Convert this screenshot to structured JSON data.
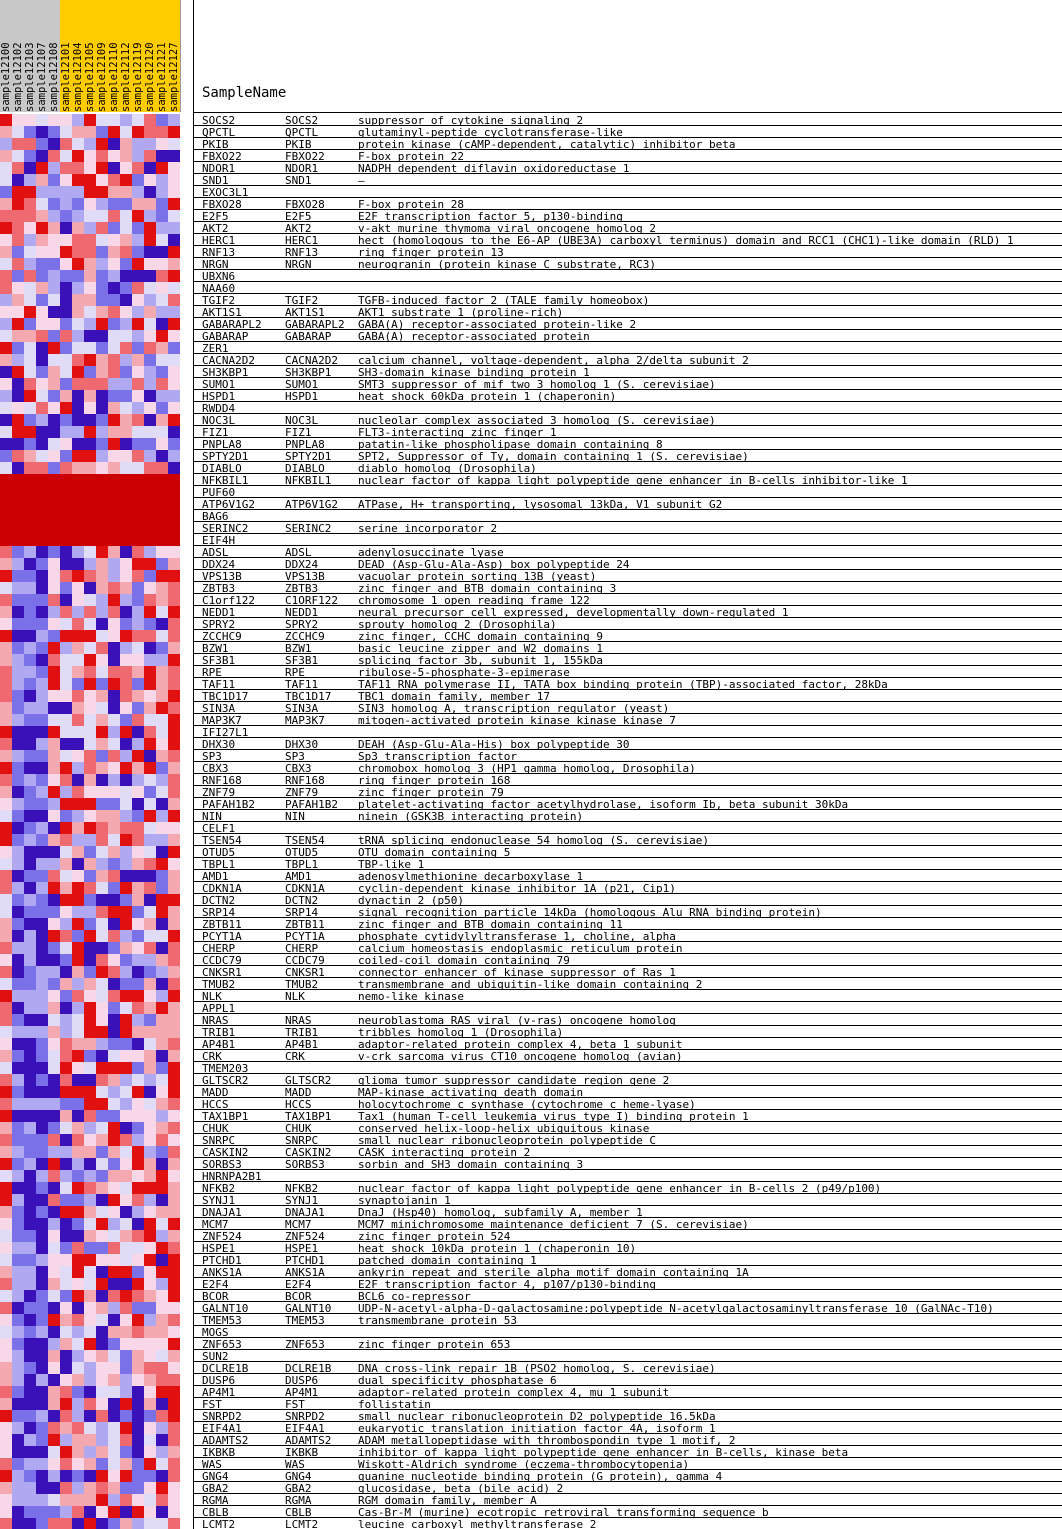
{
  "header": {
    "samplename_label": "SampleName"
  },
  "chart_data": {
    "type": "heatmap",
    "title": "",
    "xlabel": "",
    "ylabel": "",
    "column_header_colors": {
      "group_a": "#c8c8c8",
      "group_b": "#ffcc00"
    },
    "color_scale": [
      "#3a10b8",
      "#7a70e8",
      "#b0a8f0",
      "#e0dcf8",
      "#f8d8e8",
      "#f4a8b0",
      "#ee6a70",
      "#e01010"
    ],
    "samples": [
      {
        "name": "sample12100",
        "group": "group_a"
      },
      {
        "name": "sample12102",
        "group": "group_a"
      },
      {
        "name": "sample12103",
        "group": "group_a"
      },
      {
        "name": "sample12107",
        "group": "group_a"
      },
      {
        "name": "sample12108",
        "group": "group_a"
      },
      {
        "name": "sample12101",
        "group": "group_b"
      },
      {
        "name": "sample12104",
        "group": "group_b"
      },
      {
        "name": "sample12105",
        "group": "group_b"
      },
      {
        "name": "sample12109",
        "group": "group_b"
      },
      {
        "name": "sample12110",
        "group": "group_b"
      },
      {
        "name": "sample12112",
        "group": "group_b"
      },
      {
        "name": "sample12119",
        "group": "group_b"
      },
      {
        "name": "sample12120",
        "group": "group_b"
      },
      {
        "name": "sample12121",
        "group": "group_b"
      },
      {
        "name": "sample12127",
        "group": "group_b"
      }
    ],
    "rows": [
      [
        "SOCS2",
        "SOCS2",
        "suppressor of cytokine signaling 2"
      ],
      [
        "QPCTL",
        "QPCTL",
        "glutaminyl-peptide cyclotransferase-like"
      ],
      [
        "PKIB",
        "PKIB",
        "protein kinase (cAMP-dependent, catalytic) inhibitor beta"
      ],
      [
        "FBXO22",
        "FBXO22",
        "F-box protein 22"
      ],
      [
        "NDOR1",
        "NDOR1",
        "NADPH dependent diflavin oxidoreductase 1"
      ],
      [
        "SND1",
        "SND1",
        "–"
      ],
      [
        "EXOC3L1",
        "",
        ""
      ],
      [
        "FBXO28",
        "FBXO28",
        "F-box protein 28"
      ],
      [
        "E2F5",
        "E2F5",
        "E2F transcription factor 5, p130-binding"
      ],
      [
        "AKT2",
        "AKT2",
        "v-akt murine thymoma viral oncogene homolog 2"
      ],
      [
        "HERC1",
        "HERC1",
        "hect (homologous to the E6-AP (UBE3A) carboxyl terminus) domain and RCC1 (CHC1)-like domain (RLD) 1"
      ],
      [
        "RNF13",
        "RNF13",
        "ring finger protein 13"
      ],
      [
        "NRGN",
        "NRGN",
        "neurogranin (protein kinase C substrate, RC3)"
      ],
      [
        "UBXN6",
        "",
        ""
      ],
      [
        "NAA60",
        "",
        ""
      ],
      [
        "TGIF2",
        "TGIF2",
        "TGFB-induced factor 2 (TALE family homeobox)"
      ],
      [
        "AKT1S1",
        "AKT1S1",
        "AKT1 substrate 1 (proline-rich)"
      ],
      [
        "GABARAPL2",
        "GABARAPL2",
        "GABA(A) receptor-associated protein-like 2"
      ],
      [
        "GABARAP",
        "GABARAP",
        "GABA(A) receptor-associated protein"
      ],
      [
        "ZER1",
        "",
        ""
      ],
      [
        "CACNA2D2",
        "CACNA2D2",
        "calcium channel, voltage-dependent, alpha 2/delta subunit 2"
      ],
      [
        "SH3KBP1",
        "SH3KBP1",
        "SH3-domain kinase binding protein 1"
      ],
      [
        "SUMO1",
        "SUMO1",
        "SMT3 suppressor of mif two 3 homolog 1 (S. cerevisiae)"
      ],
      [
        "HSPD1",
        "HSPD1",
        "heat shock 60kDa protein 1 (chaperonin)"
      ],
      [
        "RWDD4",
        "",
        ""
      ],
      [
        "NOC3L",
        "NOC3L",
        "nucleolar complex associated 3 homolog (S. cerevisiae)"
      ],
      [
        "FIZ1",
        "FIZ1",
        "FLT3-interacting zinc finger 1"
      ],
      [
        "PNPLA8",
        "PNPLA8",
        "patatin-like phospholipase domain containing 8"
      ],
      [
        "SPTY2D1",
        "SPTY2D1",
        "SPT2, Suppressor of Ty, domain containing 1 (S. cerevisiae)"
      ],
      [
        "DIABLO",
        "DIABLO",
        "diablo homolog (Drosophila)"
      ],
      [
        "NFKBIL1",
        "NFKBIL1",
        "nuclear factor of kappa light polypeptide gene enhancer in B-cells inhibitor-like 1"
      ],
      [
        "PUF60",
        "",
        ""
      ],
      [
        "ATP6V1G2",
        "ATP6V1G2",
        "ATPase, H+ transporting, lysosomal 13kDa, V1 subunit G2"
      ],
      [
        "BAG6",
        "",
        ""
      ],
      [
        "SERINC2",
        "SERINC2",
        "serine incorporator 2"
      ],
      [
        "EIF4H",
        "",
        ""
      ],
      [
        "ADSL",
        "ADSL",
        "adenylosuccinate lyase"
      ],
      [
        "DDX24",
        "DDX24",
        "DEAD (Asp-Glu-Ala-Asp) box polypeptide 24"
      ],
      [
        "VPS13B",
        "VPS13B",
        "vacuolar protein sorting 13B (yeast)"
      ],
      [
        "ZBTB3",
        "ZBTB3",
        "zinc finger and BTB domain containing 3"
      ],
      [
        "C1orf122",
        "C1ORF122",
        "chromosome 1 open reading frame 122"
      ],
      [
        "NEDD1",
        "NEDD1",
        "neural precursor cell expressed, developmentally down-regulated 1"
      ],
      [
        "SPRY2",
        "SPRY2",
        "sprouty homolog 2 (Drosophila)"
      ],
      [
        "ZCCHC9",
        "ZCCHC9",
        "zinc finger, CCHC domain containing 9"
      ],
      [
        "BZW1",
        "BZW1",
        "basic leucine zipper and W2 domains 1"
      ],
      [
        "SF3B1",
        "SF3B1",
        "splicing factor 3b, subunit 1, 155kDa"
      ],
      [
        "RPE",
        "RPE",
        "ribulose-5-phosphate-3-epimerase"
      ],
      [
        "TAF11",
        "TAF11",
        "TAF11 RNA polymerase II, TATA box binding protein (TBP)-associated factor, 28kDa"
      ],
      [
        "TBC1D17",
        "TBC1D17",
        "TBC1 domain family, member 17"
      ],
      [
        "SIN3A",
        "SIN3A",
        "SIN3 homolog A, transcription regulator (yeast)"
      ],
      [
        "MAP3K7",
        "MAP3K7",
        "mitogen-activated protein kinase kinase kinase 7"
      ],
      [
        "IFI27L1",
        "",
        ""
      ],
      [
        "DHX30",
        "DHX30",
        "DEAH (Asp-Glu-Ala-His) box polypeptide 30"
      ],
      [
        "SP3",
        "SP3",
        "Sp3 transcription factor"
      ],
      [
        "CBX3",
        "CBX3",
        "chromobox homolog 3 (HP1 gamma homolog, Drosophila)"
      ],
      [
        "RNF168",
        "RNF168",
        "ring finger protein 168"
      ],
      [
        "ZNF79",
        "ZNF79",
        "zinc finger protein 79"
      ],
      [
        "PAFAH1B2",
        "PAFAH1B2",
        "platelet-activating factor acetylhydrolase, isoform Ib, beta subunit 30kDa"
      ],
      [
        "NIN",
        "NIN",
        "ninein (GSK3B interacting protein)"
      ],
      [
        "CELF1",
        "",
        ""
      ],
      [
        "TSEN54",
        "TSEN54",
        "tRNA splicing endonuclease 54 homolog (S. cerevisiae)"
      ],
      [
        "OTUD5",
        "OTUD5",
        "OTU domain containing 5"
      ],
      [
        "TBPL1",
        "TBPL1",
        "TBP-like 1"
      ],
      [
        "AMD1",
        "AMD1",
        "adenosylmethionine decarboxylase 1"
      ],
      [
        "CDKN1A",
        "CDKN1A",
        "cyclin-dependent kinase inhibitor 1A (p21, Cip1)"
      ],
      [
        "DCTN2",
        "DCTN2",
        "dynactin 2 (p50)"
      ],
      [
        "SRP14",
        "SRP14",
        "signal recognition particle 14kDa (homologous Alu RNA binding protein)"
      ],
      [
        "ZBTB11",
        "ZBTB11",
        "zinc finger and BTB domain containing 11"
      ],
      [
        "PCYT1A",
        "PCYT1A",
        "phosphate cytidylyltransferase 1, choline, alpha"
      ],
      [
        "CHERP",
        "CHERP",
        "calcium homeostasis endoplasmic reticulum protein"
      ],
      [
        "CCDC79",
        "CCDC79",
        "coiled-coil domain containing 79"
      ],
      [
        "CNKSR1",
        "CNKSR1",
        "connector enhancer of kinase suppressor of Ras 1"
      ],
      [
        "TMUB2",
        "TMUB2",
        "transmembrane and ubiquitin-like domain containing 2"
      ],
      [
        "NLK",
        "NLK",
        "nemo-like kinase"
      ],
      [
        "APPL1",
        "",
        ""
      ],
      [
        "NRAS",
        "NRAS",
        "neuroblastoma RAS viral (v-ras) oncogene homolog"
      ],
      [
        "TRIB1",
        "TRIB1",
        "tribbles homolog 1 (Drosophila)"
      ],
      [
        "AP4B1",
        "AP4B1",
        "adaptor-related protein complex 4, beta 1 subunit"
      ],
      [
        "CRK",
        "CRK",
        "v-crk sarcoma virus CT10 oncogene homolog (avian)"
      ],
      [
        "TMEM203",
        "",
        ""
      ],
      [
        "GLTSCR2",
        "GLTSCR2",
        "glioma tumor suppressor candidate region gene 2"
      ],
      [
        "MADD",
        "MADD",
        "MAP-kinase activating death domain"
      ],
      [
        "HCCS",
        "HCCS",
        "holocytochrome c synthase (cytochrome c heme-lyase)"
      ],
      [
        "TAX1BP1",
        "TAX1BP1",
        "Tax1 (human T-cell leukemia virus type I) binding protein 1"
      ],
      [
        "CHUK",
        "CHUK",
        "conserved helix-loop-helix ubiquitous kinase"
      ],
      [
        "SNRPC",
        "SNRPC",
        "small nuclear ribonucleoprotein polypeptide C"
      ],
      [
        "CASKIN2",
        "CASKIN2",
        "CASK interacting protein 2"
      ],
      [
        "SORBS3",
        "SORBS3",
        "sorbin and SH3 domain containing 3"
      ],
      [
        "HNRNPA2B1",
        "",
        ""
      ],
      [
        "NFKB2",
        "NFKB2",
        "nuclear factor of kappa light polypeptide gene enhancer in B-cells 2 (p49/p100)"
      ],
      [
        "SYNJ1",
        "SYNJ1",
        "synaptojanin 1"
      ],
      [
        "DNAJA1",
        "DNAJA1",
        "DnaJ (Hsp40) homolog, subfamily A, member 1"
      ],
      [
        "MCM7",
        "MCM7",
        "MCM7 minichromosome maintenance deficient 7 (S. cerevisiae)"
      ],
      [
        "ZNF524",
        "ZNF524",
        "zinc finger protein 524"
      ],
      [
        "HSPE1",
        "HSPE1",
        "heat shock 10kDa protein 1 (chaperonin 10)"
      ],
      [
        "PTCHD1",
        "PTCHD1",
        "patched domain containing 1"
      ],
      [
        "ANKS1A",
        "ANKS1A",
        "ankyrin repeat and sterile alpha motif domain containing 1A"
      ],
      [
        "E2F4",
        "E2F4",
        "E2F transcription factor 4, p107/p130-binding"
      ],
      [
        "BCOR",
        "BCOR",
        "BCL6 co-repressor"
      ],
      [
        "GALNT10",
        "GALNT10",
        "UDP-N-acetyl-alpha-D-galactosamine:polypeptide N-acetylgalactosaminyltransferase 10 (GalNAc-T10)"
      ],
      [
        "TMEM53",
        "TMEM53",
        "transmembrane protein 53"
      ],
      [
        "MOGS",
        "",
        ""
      ],
      [
        "ZNF653",
        "ZNF653",
        "zinc finger protein 653"
      ],
      [
        "SUN2",
        "",
        ""
      ],
      [
        "DCLRE1B",
        "DCLRE1B",
        "DNA cross-link repair 1B (PSO2 homolog, S. cerevisiae)"
      ],
      [
        "DUSP6",
        "DUSP6",
        "dual specificity phosphatase 6"
      ],
      [
        "AP4M1",
        "AP4M1",
        "adaptor-related protein complex 4, mu 1 subunit"
      ],
      [
        "FST",
        "FST",
        "follistatin"
      ],
      [
        "SNRPD2",
        "SNRPD2",
        "small nuclear ribonucleoprotein D2 polypeptide 16.5kDa"
      ],
      [
        "EIF4A1",
        "EIF4A1",
        "eukaryotic translation initiation factor 4A, isoform 1"
      ],
      [
        "ADAMTS2",
        "ADAMTS2",
        "ADAM metallopeptidase with thrombospondin type 1 motif, 2"
      ],
      [
        "IKBKB",
        "IKBKB",
        "inhibitor of kappa light polypeptide gene enhancer in B-cells, kinase beta"
      ],
      [
        "WAS",
        "WAS",
        "Wiskott-Aldrich syndrome (eczema-thrombocytopenia)"
      ],
      [
        "GNG4",
        "GNG4",
        "guanine nucleotide binding protein (G protein), gamma 4"
      ],
      [
        "GBA2",
        "GBA2",
        "glucosidase, beta (bile acid) 2"
      ],
      [
        "RGMA",
        "RGMA",
        "RGM domain family, member A"
      ],
      [
        "CBLB",
        "CBLB",
        "Cas-Br-M (murine) ecotropic retroviral transforming sequence b"
      ],
      [
        "LCMT2",
        "LCMT2",
        "leucine carboxyl methyltransferase 2"
      ]
    ],
    "red_block_rows": [
      "NFKBIL1",
      "PUF60",
      "ATP6V1G2",
      "BAG6",
      "SERINC2",
      "EIF4H"
    ]
  }
}
